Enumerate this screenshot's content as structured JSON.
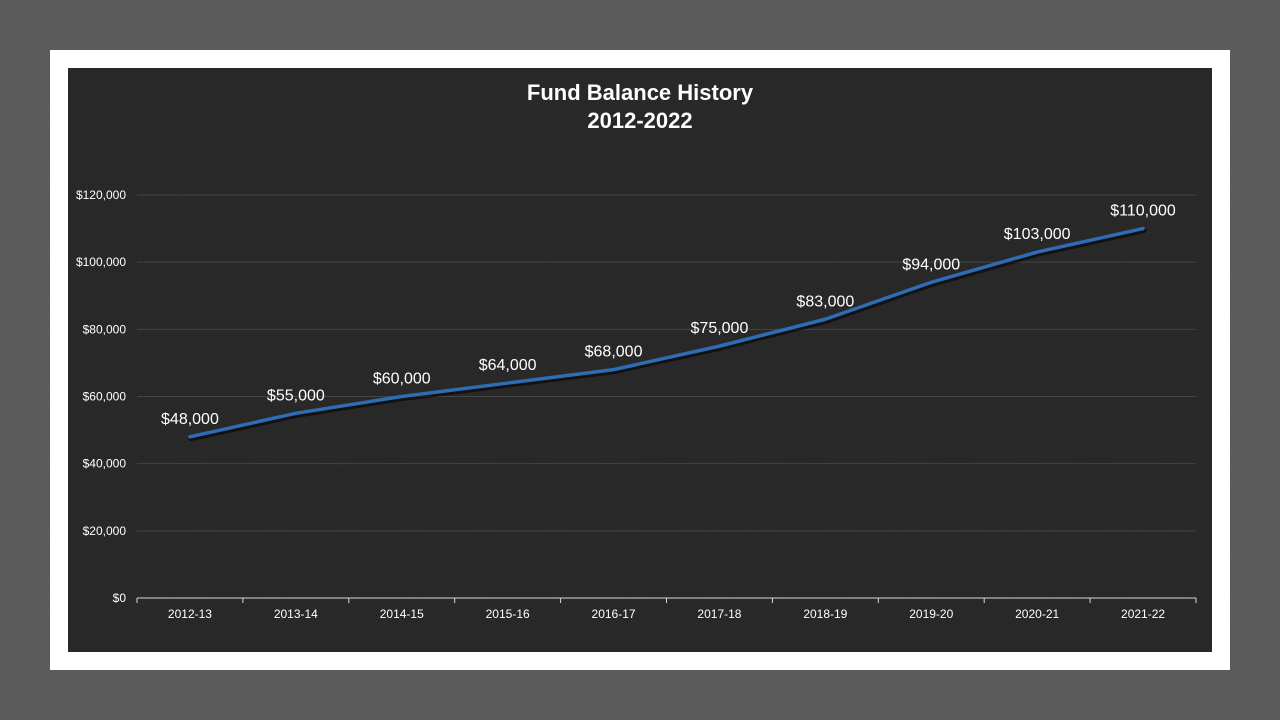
{
  "chart_data": {
    "type": "line",
    "title": "Fund Balance History",
    "subtitle": "2012-2022",
    "xlabel": "",
    "ylabel": "",
    "categories": [
      "2012-13",
      "2013-14",
      "2014-15",
      "2015-16",
      "2016-17",
      "2017-18",
      "2018-19",
      "2019-20",
      "2020-21",
      "2021-22"
    ],
    "series": [
      {
        "values": [
          48000,
          55000,
          60000,
          64000,
          68000,
          75000,
          83000,
          94000,
          103000,
          110000
        ],
        "color": "#2e6db4"
      }
    ],
    "data_labels": [
      "$48,000",
      "$55,000",
      "$60,000",
      "$64,000",
      "$68,000",
      "$75,000",
      "$83,000",
      "$94,000",
      "$103,000",
      "$110,000"
    ],
    "y_tick_values": [
      0,
      20000,
      40000,
      60000,
      80000,
      100000,
      120000
    ],
    "y_tick_labels": [
      "$0",
      "$20,000",
      "$40,000",
      "$60,000",
      "$80,000",
      "$100,000",
      "$120,000"
    ],
    "ylim": [
      0,
      120000
    ],
    "grid": true,
    "legend": "none"
  },
  "colors": {
    "background": "#5a5a5a",
    "frame": "#ffffff",
    "plot_background": "#272727",
    "gridline": "#444444",
    "axis": "#d9d9d9",
    "text": "#ffffff",
    "line": "#2e6db4"
  }
}
